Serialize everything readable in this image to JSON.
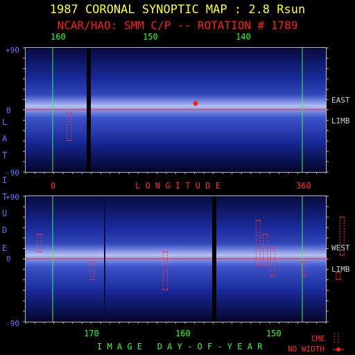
{
  "title": "1987 CORONAL SYNOPTIC MAP : 2.8 Rsun",
  "subtitle": "NCAR/HAO: SMM C/P -- ROTATION # 1789",
  "top_axis_ticks": [
    "160",
    "150",
    "140"
  ],
  "lat_ticks": [
    "+90",
    "0",
    "-90"
  ],
  "latitude_label": [
    "L",
    "A",
    "T",
    "I",
    "T",
    "U",
    "D",
    "E"
  ],
  "longitude_label": "L O N G I T U D E",
  "longitude_ticks": [
    "0",
    "360"
  ],
  "day_label": "I M A G E   D A Y - O F - Y E A R",
  "day_ticks": [
    "170",
    "160",
    "150"
  ],
  "east_limb": [
    "EAST",
    "LIMB"
  ],
  "west_limb": [
    "WEST",
    "LIMB"
  ],
  "legend": {
    "cme": "CME",
    "no_width": "NO WIDTH"
  },
  "colors": {
    "title": "#ffff33",
    "subtitle": "#ff2020",
    "grid_green": "#33ff33",
    "equator": "#ff2020",
    "lat_text": "#6677ff"
  },
  "chart_data": [
    {
      "type": "heatmap",
      "panel": "east limb",
      "xlabel": "",
      "x_ticks_top": [
        160,
        150,
        140
      ],
      "ylabel": "LATITUDE",
      "ylim": [
        -90,
        90
      ],
      "y_ticks": [
        "+90",
        "0",
        "-90"
      ],
      "cme_events": [
        {
          "day": 158.2,
          "lat_range": [
            -45,
            -5
          ]
        },
        {
          "day": 144.5,
          "lat_point": 9
        }
      ]
    },
    {
      "type": "heatmap",
      "panel": "west limb",
      "xlabel": "IMAGE DAY-OF-YEAR",
      "x_ticks": [
        170,
        160,
        150
      ],
      "ylabel": "LATITUDE",
      "ylim": [
        -90,
        90
      ],
      "y_ticks": [
        "+90",
        "0",
        "-90"
      ],
      "cme_events": [
        {
          "day": 175.8,
          "lat_range": [
            10,
            35
          ]
        },
        {
          "day": 170.0,
          "lat_range": [
            -30,
            -5
          ]
        },
        {
          "day": 162.0,
          "lat_range": [
            -45,
            10
          ]
        },
        {
          "day": 151.8,
          "lat_range": [
            -10,
            55
          ]
        },
        {
          "day": 151.0,
          "lat_range": [
            -10,
            35
          ]
        },
        {
          "day": 150.2,
          "lat_range": [
            -25,
            15
          ]
        },
        {
          "day": 146.8,
          "lat_range": [
            -25,
            -5
          ]
        },
        {
          "day": 143.0,
          "lat_range": [
            -30,
            -20
          ]
        },
        {
          "day": 142.6,
          "lat_range": [
            5,
            60
          ]
        }
      ]
    }
  ]
}
